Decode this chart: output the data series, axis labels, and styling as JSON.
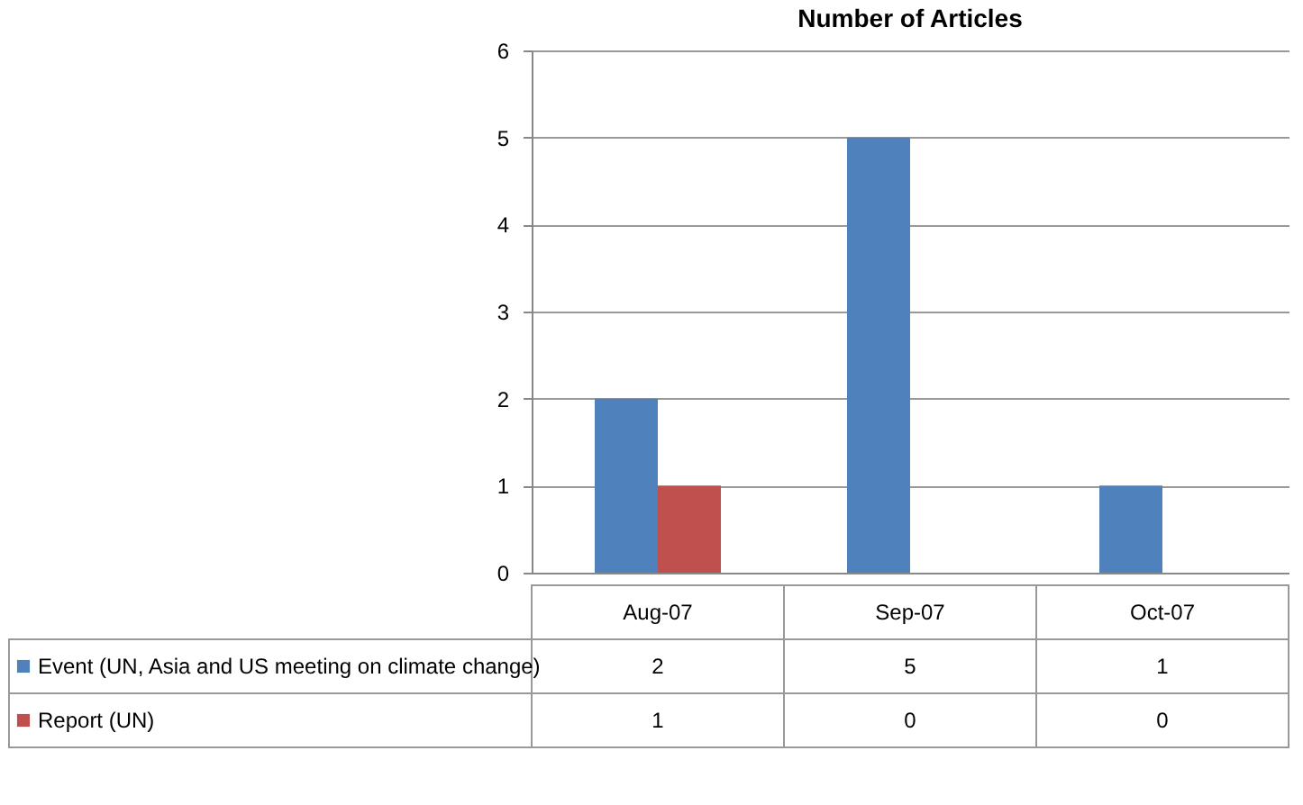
{
  "chart_data": {
    "type": "bar",
    "title": "Number of Articles",
    "categories": [
      "Aug-07",
      "Sep-07",
      "Oct-07"
    ],
    "series": [
      {
        "name": "Event (UN, Asia and US meeting on climate change)",
        "color": "#4f81bd",
        "values": [
          2,
          5,
          1
        ]
      },
      {
        "name": "Report (UN)",
        "color": "#c0504d",
        "values": [
          1,
          0,
          0
        ]
      }
    ],
    "ylim": [
      0,
      6
    ],
    "yticks": [
      0,
      1,
      2,
      3,
      4,
      5,
      6
    ],
    "grid": "y",
    "legend": "bottom left",
    "data_labels": true
  }
}
